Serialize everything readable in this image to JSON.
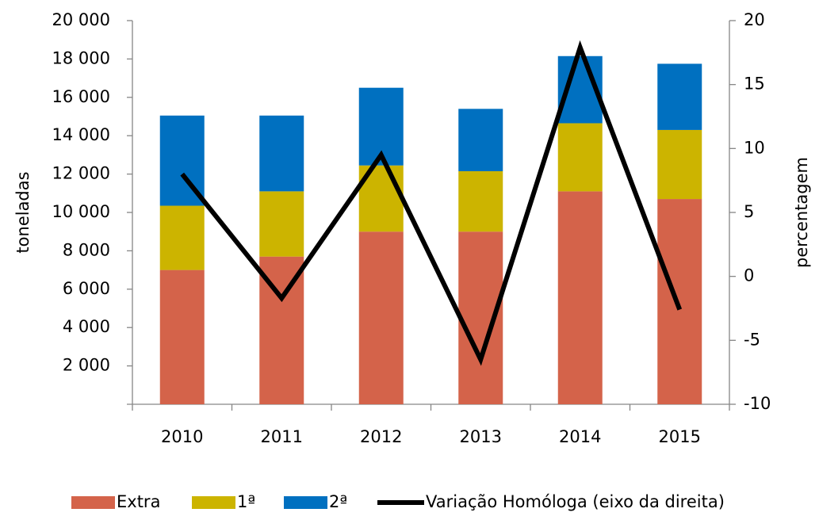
{
  "chart_data": {
    "type": "bar",
    "stacked": true,
    "categories": [
      "2010",
      "2011",
      "2012",
      "2013",
      "2014",
      "2015"
    ],
    "series": [
      {
        "name": "Extra",
        "color": "#d4634a",
        "values": [
          7000,
          7700,
          9000,
          9000,
          11100,
          10700
        ]
      },
      {
        "name": "1ª",
        "color": "#ccb400",
        "values": [
          3350,
          3400,
          3450,
          3150,
          3550,
          3600
        ]
      },
      {
        "name": "2ª",
        "color": "#0070c0",
        "values": [
          4700,
          3950,
          4050,
          3250,
          3500,
          3450
        ]
      },
      {
        "name": "Variação Homóloga (eixo da direita)",
        "color": "#000000",
        "type": "line",
        "axis": "y2",
        "values": [
          8,
          -1.7,
          9.5,
          -6.5,
          17.9,
          -2.6
        ]
      }
    ],
    "ylabel": "toneladas",
    "y2label": "percentagem",
    "ylim": [
      0,
      20000
    ],
    "yticks": [
      {
        "value": 2000,
        "label": "2 000"
      },
      {
        "value": 4000,
        "label": "4 000"
      },
      {
        "value": 6000,
        "label": "6 000"
      },
      {
        "value": 8000,
        "label": "8 000"
      },
      {
        "value": 10000,
        "label": "10 000"
      },
      {
        "value": 12000,
        "label": "12 000"
      },
      {
        "value": 14000,
        "label": "14 000"
      },
      {
        "value": 16000,
        "label": "16 000"
      },
      {
        "value": 18000,
        "label": "18 000"
      },
      {
        "value": 20000,
        "label": "20 000"
      }
    ],
    "y2lim": [
      -10,
      20
    ],
    "y2ticks": [
      -10,
      -5,
      0,
      5,
      10,
      15,
      20
    ],
    "grid": false,
    "legend": "bottom"
  }
}
